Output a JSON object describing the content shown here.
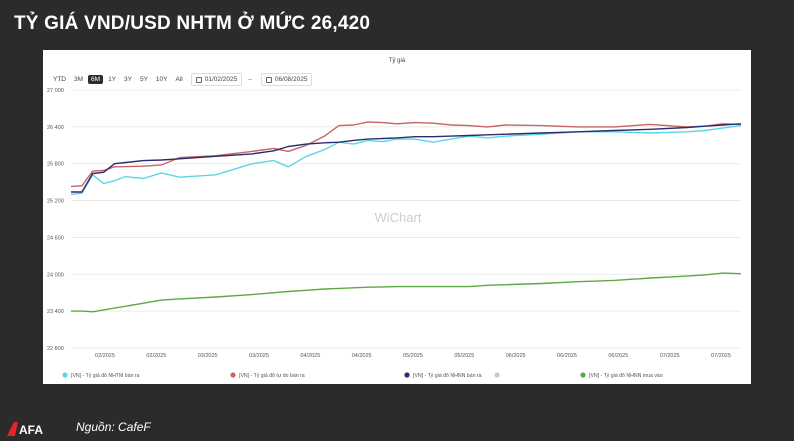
{
  "headline": "TỶ GIÁ VND/USD NHTM Ở MỨC 26,420",
  "source": "Nguồn: CafeF",
  "logo_text": "CAFEF",
  "watermark": "WiChart",
  "range_buttons": [
    "YTD",
    "3M",
    "6M",
    "1Y",
    "3Y",
    "5Y",
    "10Y",
    "All"
  ],
  "active_range": "6M",
  "date_from": "01/02/2025",
  "date_to": "06/08/2025",
  "chart_data": {
    "type": "line",
    "title": "Tỷ giá",
    "ylim": [
      22800,
      27000
    ],
    "y_ticks": [
      22800,
      23400,
      24000,
      24600,
      25200,
      25800,
      26400,
      27000
    ],
    "y_tick_labels": [
      "22 800",
      "23 400",
      "24 000",
      "24 600",
      "25 200",
      "25 800",
      "26 400",
      "27 000"
    ],
    "x_tick_labels": [
      "02/2025",
      "02/2025",
      "03/2025",
      "03/2025",
      "04/2025",
      "04/2025",
      "05/2025",
      "05/2025",
      "06/2025",
      "06/2025",
      "06/2025",
      "07/2025",
      "07/2025"
    ],
    "x_range": [
      0,
      185
    ],
    "grid": true,
    "legend_position": "bottom",
    "series": [
      {
        "name": "[VN] - Tỷ giá đô NHTM bán ra",
        "color": "#5ad7e6",
        "x": [
          0,
          3,
          6,
          9,
          12,
          15,
          20,
          25,
          30,
          40,
          50,
          56,
          60,
          65,
          70,
          74,
          78,
          82,
          86,
          90,
          95,
          100,
          105,
          110,
          115,
          120,
          130,
          140,
          150,
          160,
          170,
          175,
          180,
          185
        ],
        "values": [
          25300,
          25320,
          25620,
          25480,
          25520,
          25590,
          25560,
          25650,
          25580,
          25620,
          25800,
          25850,
          25750,
          25920,
          26030,
          26150,
          26120,
          26180,
          26160,
          26200,
          26200,
          26150,
          26200,
          26250,
          26220,
          26250,
          26280,
          26320,
          26320,
          26300,
          26320,
          26340,
          26380,
          26420
        ]
      },
      {
        "name": "[VN] - Tỷ giá đô tự do bán ra",
        "color": "#c86464",
        "x": [
          0,
          3,
          6,
          9,
          12,
          20,
          25,
          30,
          40,
          50,
          56,
          60,
          65,
          70,
          74,
          78,
          82,
          86,
          90,
          95,
          100,
          105,
          110,
          115,
          120,
          130,
          140,
          150,
          160,
          170,
          175,
          180,
          185
        ],
        "values": [
          25430,
          25440,
          25680,
          25690,
          25750,
          25760,
          25780,
          25900,
          25930,
          26000,
          26050,
          26000,
          26100,
          26250,
          26420,
          26430,
          26480,
          26470,
          26450,
          26470,
          26460,
          26430,
          26420,
          26400,
          26430,
          26420,
          26400,
          26400,
          26440,
          26400,
          26410,
          26450,
          26440
        ]
      },
      {
        "name": "[VN] - Tỷ giá đô NHNN bán ra",
        "color": "#2b2d6e",
        "x": [
          0,
          3,
          6,
          9,
          12,
          20,
          25,
          30,
          40,
          50,
          56,
          60,
          65,
          70,
          74,
          78,
          82,
          86,
          90,
          95,
          100,
          105,
          110,
          115,
          120,
          130,
          140,
          150,
          160,
          170,
          175,
          180,
          185
        ],
        "values": [
          25340,
          25340,
          25640,
          25660,
          25800,
          25850,
          25860,
          25880,
          25920,
          25960,
          26010,
          26080,
          26120,
          26140,
          26150,
          26180,
          26200,
          26210,
          26220,
          26240,
          26240,
          26250,
          26260,
          26270,
          26280,
          26300,
          26320,
          26340,
          26360,
          26390,
          26410,
          26430,
          26450
        ]
      },
      {
        "name": "[VN] - Tỷ giá đô NHNN mua vào",
        "color": "#5daa45",
        "x": [
          0,
          3,
          6,
          9,
          12,
          20,
          25,
          30,
          40,
          50,
          56,
          60,
          65,
          70,
          74,
          78,
          82,
          86,
          90,
          95,
          100,
          105,
          110,
          115,
          120,
          130,
          140,
          150,
          160,
          170,
          175,
          180,
          185
        ],
        "values": [
          23400,
          23400,
          23390,
          23420,
          23450,
          23530,
          23580,
          23600,
          23630,
          23670,
          23700,
          23720,
          23740,
          23760,
          23770,
          23780,
          23790,
          23795,
          23800,
          23800,
          23800,
          23800,
          23800,
          23820,
          23830,
          23850,
          23880,
          23900,
          23940,
          23970,
          23990,
          24020,
          24010
        ]
      }
    ]
  }
}
